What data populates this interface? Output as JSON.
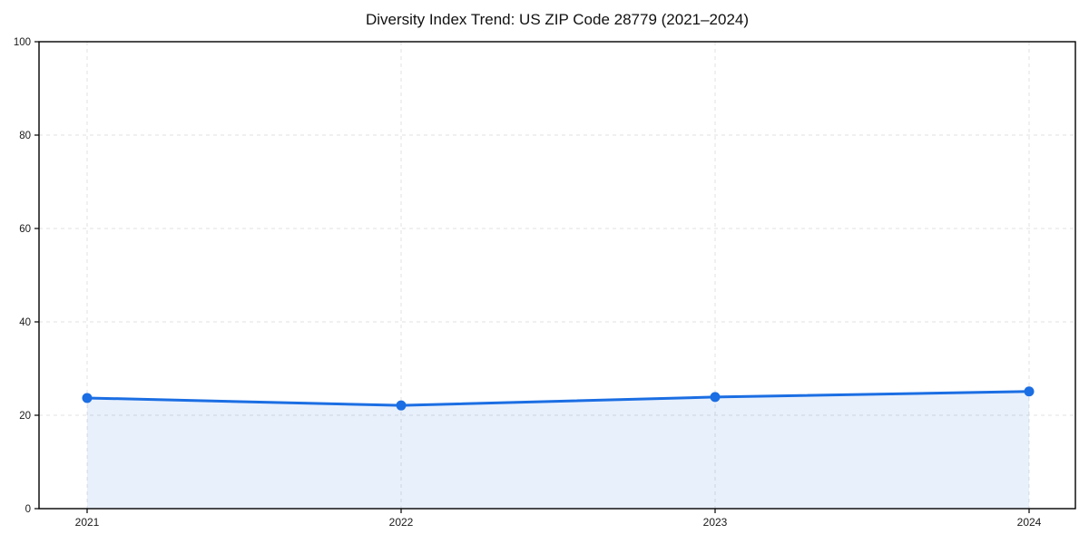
{
  "title": "Diversity Index Trend: US ZIP Code 28779 (2021–2024)",
  "colors": {
    "line": "#1b6ee3",
    "marker": "#1b6ee3",
    "area_fill": "#1b6ee3",
    "area_opacity": 0.1,
    "grid": "#e0e0e0",
    "axis": "#000000",
    "tick_text": "#1a1a1a",
    "background": "#ffffff"
  },
  "chart_data": {
    "type": "line",
    "title": "Diversity Index Trend: US ZIP Code 28779 (2021–2024)",
    "x": [
      2021,
      2022,
      2023,
      2024
    ],
    "xticks": [
      "2021",
      "2022",
      "2023",
      "2024"
    ],
    "series": [
      {
        "name": "Diversity Index",
        "values": [
          23.7,
          22.1,
          23.9,
          25.1
        ]
      }
    ],
    "xlabel": "",
    "ylabel": "",
    "ylim": [
      0,
      100
    ],
    "yticks": [
      0,
      20,
      40,
      60,
      80,
      100
    ],
    "grid": true,
    "grid_style": "dashed",
    "legend_position": "none",
    "marker": "circle",
    "area_fill": true
  }
}
